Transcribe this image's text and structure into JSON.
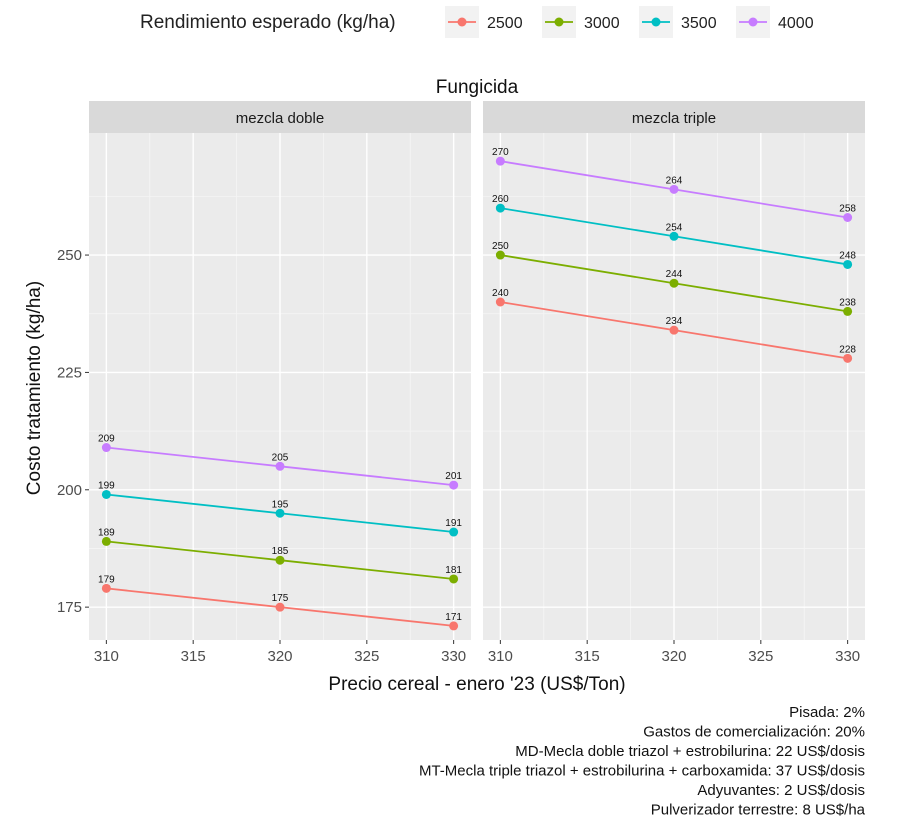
{
  "chart_data": {
    "type": "line",
    "title": "Fungicida",
    "legend": {
      "title": "Rendimiento esperado (kg/ha)",
      "position": "top",
      "entries": [
        "2500",
        "3000",
        "3500",
        "4000"
      ]
    },
    "xlabel": "Precio cereal - enero '23 (US$/Ton)",
    "ylabel": "Costo tratamiento (kg/ha)",
    "xlim": [
      309,
      331
    ],
    "ylim": [
      168,
      276
    ],
    "xticks": [
      310,
      315,
      320,
      325,
      330
    ],
    "yticks": [
      175,
      200,
      225,
      250
    ],
    "grid": true,
    "colors": {
      "2500": "#F8766D",
      "3000": "#7CAE00",
      "3500": "#00BFC4",
      "4000": "#C77CFF",
      "panel_bg": "#EBEBEB",
      "strip_bg": "#D9D9D9",
      "grid_major": "#FFFFFF"
    },
    "x": [
      310,
      320,
      330
    ],
    "panels": [
      {
        "label": "mezcla doble",
        "series": [
          {
            "name": "2500",
            "values": [
              179,
              175,
              171
            ]
          },
          {
            "name": "3000",
            "values": [
              189,
              185,
              181
            ]
          },
          {
            "name": "3500",
            "values": [
              199,
              195,
              191
            ]
          },
          {
            "name": "4000",
            "values": [
              209,
              205,
              201
            ]
          }
        ]
      },
      {
        "label": "mezcla triple",
        "series": [
          {
            "name": "2500",
            "values": [
              240,
              234,
              228
            ]
          },
          {
            "name": "3000",
            "values": [
              250,
              244,
              238
            ]
          },
          {
            "name": "3500",
            "values": [
              260,
              254,
              248
            ]
          },
          {
            "name": "4000",
            "values": [
              270,
              264,
              258
            ]
          }
        ]
      }
    ],
    "caption": [
      "Pisada: 2%",
      "Gastos de comercialización: 20%",
      "MD-Mecla doble triazol + estrobilurina: 22 US$/dosis",
      "MT-Mecla triple triazol + estrobilurina + carboxamida: 37 US$/dosis",
      "Adyuvantes: 2 US$/dosis",
      "Pulverizador terrestre: 8 US$/ha"
    ]
  }
}
